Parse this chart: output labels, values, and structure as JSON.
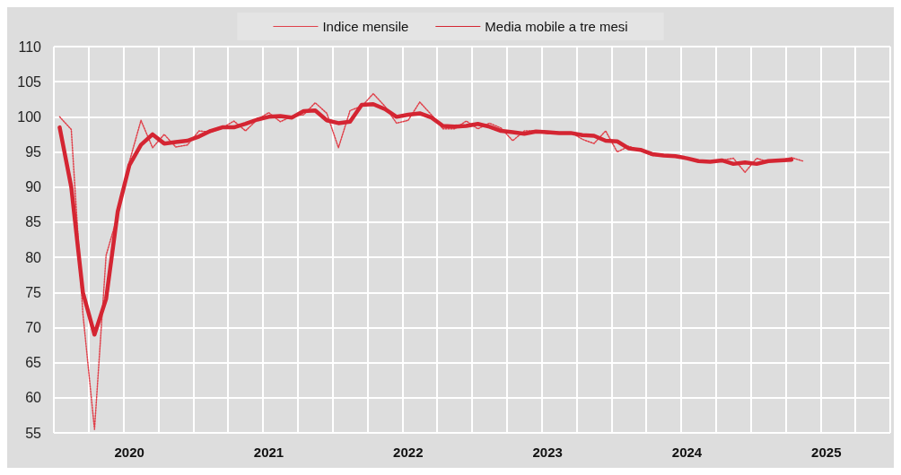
{
  "chart_data": {
    "type": "line",
    "categories": [
      null,
      null,
      null,
      null,
      null,
      null,
      "2020",
      null,
      null,
      null,
      null,
      null,
      null,
      null,
      null,
      null,
      null,
      null,
      "2021",
      null,
      null,
      null,
      null,
      null,
      null,
      null,
      null,
      null,
      null,
      null,
      "2022",
      null,
      null,
      null,
      null,
      null,
      null,
      null,
      null,
      null,
      null,
      null,
      "2023",
      null,
      null,
      null,
      null,
      null,
      null,
      null,
      null,
      null,
      null,
      null,
      "2024",
      null,
      null,
      null,
      null,
      null,
      null,
      null,
      null,
      null,
      null,
      null,
      "2025",
      null,
      null,
      null,
      null,
      null
    ],
    "series": [
      {
        "name": "Indice mensile",
        "color": "#e0404a",
        "line_style": "dotted",
        "values": [
          100,
          98.2,
          72,
          55.5,
          80.3,
          86,
          93.6,
          99.5,
          95.6,
          97.5,
          95.7,
          96,
          98,
          97.8,
          98.4,
          99.4,
          98,
          99.6,
          100.6,
          99.3,
          100.1,
          100.3,
          102,
          100.5,
          95.6,
          100.9,
          101.5,
          103.3,
          101.5,
          99.1,
          99.5,
          102.1,
          100.3,
          98.3,
          98.3,
          99.4,
          98.3,
          99.1,
          98.4,
          96.6,
          98,
          98,
          97.6,
          97.7,
          97.8,
          96.8,
          96.2,
          98,
          95,
          95.8,
          95.2,
          94.5,
          94.5,
          94.4,
          94.1,
          93.7,
          93.6,
          93.8,
          94.1,
          92.1,
          94.1,
          93.6,
          93.8,
          94.2,
          93.7,
          null,
          null,
          null,
          null,
          null,
          null,
          null
        ]
      },
      {
        "name": "Media mobile a tre mesi",
        "color": "#d42532",
        "line_style": "solid",
        "values": [
          98.5,
          90,
          75,
          69,
          74.1,
          86.5,
          93.1,
          96,
          97.5,
          96.2,
          96.4,
          96.6,
          97.2,
          98,
          98.5,
          98.5,
          99,
          99.6,
          100,
          100.1,
          99.9,
          100.8,
          100.9,
          99.5,
          99.1,
          99.3,
          101.7,
          101.8,
          101.1,
          100,
          100.3,
          100.5,
          99.9,
          98.7,
          98.6,
          98.7,
          99,
          98.6,
          98,
          97.8,
          97.6,
          97.9,
          97.8,
          97.7,
          97.7,
          97.4,
          97.3,
          96.6,
          96.5,
          95.5,
          95.3,
          94.7,
          94.5,
          94.4,
          94.1,
          93.7,
          93.6,
          93.8,
          93.3,
          93.5,
          93.3,
          93.7,
          93.8,
          93.9,
          null,
          null,
          null,
          null,
          null,
          null,
          null,
          null
        ]
      }
    ],
    "ylim": [
      55,
      110
    ],
    "yticks": [
      55,
      60,
      65,
      70,
      75,
      80,
      85,
      90,
      95,
      100,
      105,
      110
    ],
    "grid": true,
    "legend": "top",
    "marker": "none"
  }
}
